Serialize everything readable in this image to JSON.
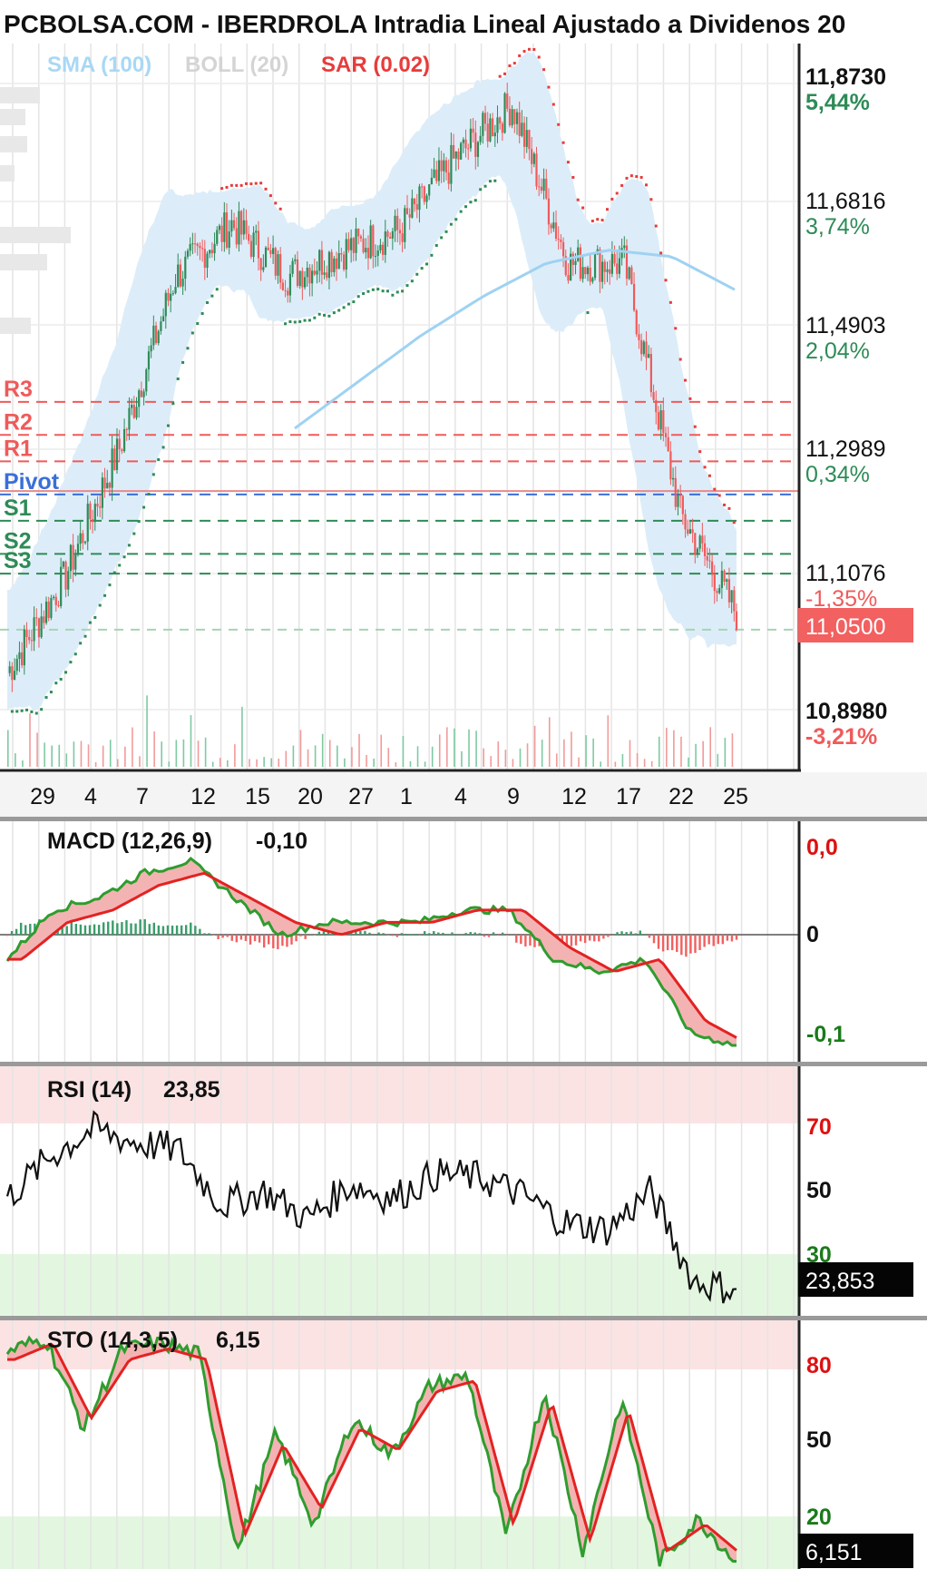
{
  "title": "PCBOLSA.COM - IBERDROLA Intradia Lineal Ajustado a Dividenos 20",
  "legend": {
    "sma": "SMA (100)",
    "boll": "BOLL (20)",
    "sar": "SAR (0.02)"
  },
  "colors": {
    "bull": "#2e8b57",
    "bear": "#f05a5a",
    "sma": "#9fd2f2",
    "boll_fill": "#dcedf9",
    "sar": "#e83b3b",
    "pivot": "#3a6fd8",
    "price_box": "#f26060"
  },
  "pivot_labels": [
    "R3",
    "R2",
    "R1",
    "Pivot",
    "S1",
    "S2",
    "S3"
  ],
  "price_ticks": [
    {
      "price": "11,8730",
      "pct": "5,44%",
      "pct_color": "#2e8b57"
    },
    {
      "price": "11,6816",
      "pct": "3,74%",
      "pct_color": "#2e8b57"
    },
    {
      "price": "11,4903",
      "pct": "2,04%",
      "pct_color": "#2e8b57"
    },
    {
      "price": "11,2989",
      "pct": "0,34%",
      "pct_color": "#2e8b57"
    },
    {
      "price": "11,1076",
      "pct": "-1,35%",
      "pct_color": "#f05a5a"
    },
    {
      "price": "10,8980",
      "pct": "-3,21%",
      "pct_color": "#f05a5a"
    }
  ],
  "last_price": "11,0500",
  "x_labels": [
    "29",
    "4",
    "7",
    "12",
    "15",
    "20",
    "27",
    "1",
    "4",
    "9",
    "12",
    "17",
    "22",
    "25"
  ],
  "macd": {
    "label": "MACD (12,26,9)",
    "value": "-0,10",
    "ticks": [
      "0,0",
      "0",
      "-0,1"
    ]
  },
  "rsi": {
    "label": "RSI (14)",
    "value": "23,85",
    "ticks": [
      "70",
      "50",
      "30"
    ],
    "last": "23,853"
  },
  "sto": {
    "label": "STO (14,3,5)",
    "value": "6,15",
    "ticks": [
      "80",
      "50",
      "20"
    ],
    "last": "6,151"
  },
  "chart_data": [
    {
      "type": "line",
      "subtype": "candlestick",
      "title": "PCBOLSA.COM - IBERDROLA Intradia Lineal Ajustado a Dividenos 20",
      "x": [
        "29",
        "4",
        "7",
        "12",
        "15",
        "20",
        "27",
        "1",
        "4",
        "9",
        "12",
        "17",
        "22",
        "25"
      ],
      "close_path": [
        10.96,
        11.1,
        11.3,
        11.56,
        11.64,
        11.56,
        11.6,
        11.63,
        11.74,
        11.82,
        11.58,
        11.58,
        11.2,
        11.05
      ],
      "sma100_path": [
        11.33,
        11.4,
        11.47,
        11.53,
        11.58,
        11.6,
        11.59,
        11.54
      ],
      "pivots": {
        "R3": 11.37,
        "R2": 11.32,
        "R1": 11.28,
        "Pivot": 11.23,
        "S1": 11.19,
        "S2": 11.14,
        "S3": 11.11
      },
      "y_ticks": [
        "11,8730",
        "11,6816",
        "11,4903",
        "11,2989",
        "11,1076",
        "10,8980"
      ],
      "y_pct": [
        "5,44%",
        "3,74%",
        "2,04%",
        "0,34%",
        "-1,35%",
        "-3,21%"
      ],
      "last": "11,0500",
      "ylim": [
        10.9,
        11.87
      ]
    },
    {
      "type": "line",
      "title": "MACD (12,26,9)",
      "macd_path": [
        -0.02,
        0.02,
        0.03,
        0.05,
        0.06,
        0.03,
        0.0,
        0.01,
        0.01,
        0.01,
        0.02,
        0.02,
        -0.02,
        -0.03,
        -0.02,
        -0.08,
        -0.09
      ],
      "signal_path": [
        -0.02,
        0.01,
        0.02,
        0.04,
        0.05,
        0.03,
        0.01,
        0.0,
        0.01,
        0.01,
        0.02,
        0.02,
        -0.01,
        -0.03,
        -0.02,
        -0.07,
        -0.09
      ],
      "value": -0.1,
      "y_ticks": [
        "0,0",
        "0",
        "-0,1"
      ]
    },
    {
      "type": "line",
      "title": "RSI (14)",
      "values": [
        50,
        62,
        70,
        66,
        64,
        48,
        52,
        44,
        54,
        50,
        57,
        56,
        51,
        43,
        41,
        52,
        26,
        23.85
      ],
      "value": 23.85,
      "y_ticks": [
        "70",
        "50",
        "30"
      ],
      "ylim": [
        0,
        100
      ]
    },
    {
      "type": "line",
      "title": "STO (14,3,5)",
      "k_path": [
        85,
        90,
        56,
        86,
        88,
        84,
        10,
        54,
        20,
        60,
        46,
        72,
        76,
        15,
        70,
        10,
        67,
        6,
        22,
        6.15
      ],
      "d_path": [
        82,
        88,
        60,
        82,
        86,
        82,
        16,
        50,
        26,
        56,
        48,
        70,
        74,
        20,
        66,
        14,
        63,
        10,
        20,
        8
      ],
      "value": 6.15,
      "y_ticks": [
        "80",
        "50",
        "20"
      ],
      "ylim": [
        0,
        100
      ]
    }
  ]
}
